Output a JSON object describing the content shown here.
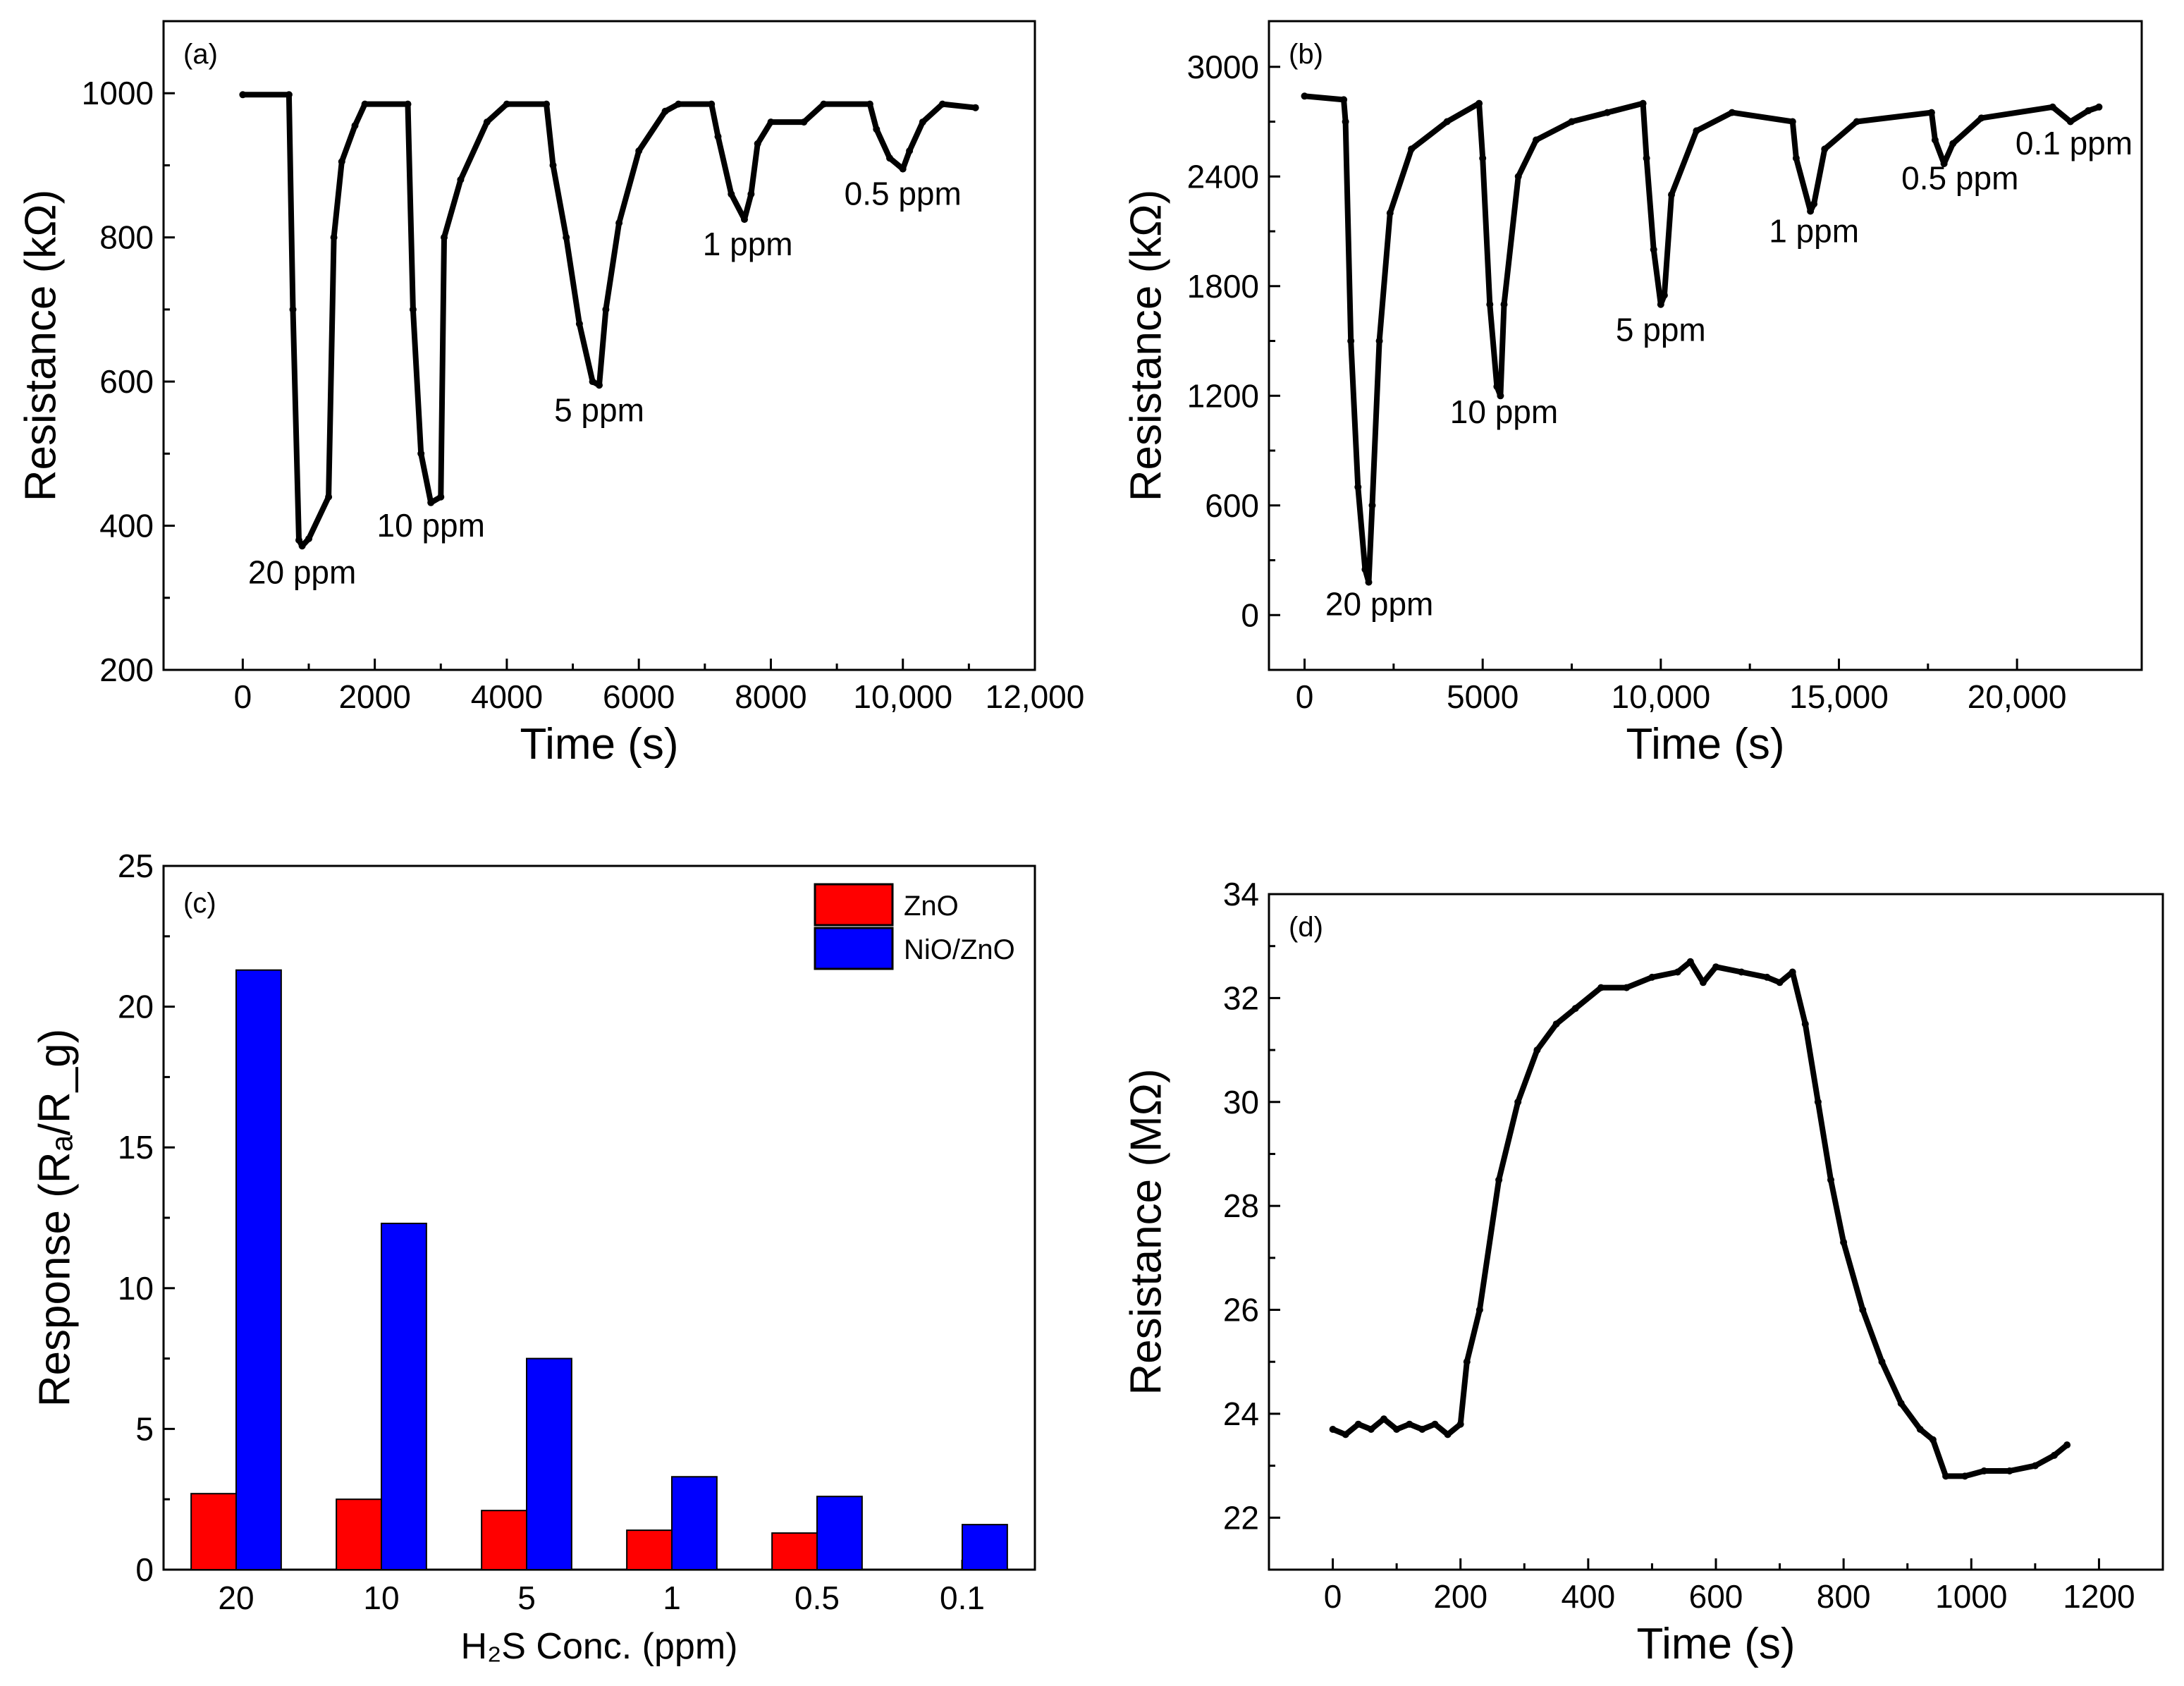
{
  "chart_data": [
    {
      "id": "a",
      "type": "line",
      "panel_label": "(a)",
      "xlabel": "Time (s)",
      "ylabel": "Resistance (kΩ)",
      "xlim": [
        -1200,
        12000
      ],
      "ylim": [
        200,
        1100
      ],
      "xticks": [
        0,
        2000,
        4000,
        6000,
        8000,
        10000,
        12000
      ],
      "xtick_labels": [
        "0",
        "2000",
        "4000",
        "6000",
        "8000",
        "10,000",
        "12,000"
      ],
      "yticks": [
        200,
        400,
        600,
        800,
        1000
      ],
      "ytick_labels": [
        "200",
        "400",
        "600",
        "800",
        "1000"
      ],
      "series": [
        {
          "name": "resistance",
          "points": [
            [
              0,
              998
            ],
            [
              700,
              998
            ],
            [
              760,
              700
            ],
            [
              850,
              380
            ],
            [
              900,
              372
            ],
            [
              1000,
              382
            ],
            [
              1300,
              440
            ],
            [
              1380,
              800
            ],
            [
              1500,
              905
            ],
            [
              1700,
              955
            ],
            [
              1850,
              985
            ],
            [
              2500,
              985
            ],
            [
              2580,
              700
            ],
            [
              2700,
              500
            ],
            [
              2850,
              432
            ],
            [
              3000,
              440
            ],
            [
              3050,
              800
            ],
            [
              3300,
              880
            ],
            [
              3700,
              960
            ],
            [
              4000,
              985
            ],
            [
              4600,
              985
            ],
            [
              4700,
              900
            ],
            [
              4900,
              800
            ],
            [
              5100,
              680
            ],
            [
              5300,
              600
            ],
            [
              5400,
              595
            ],
            [
              5500,
              700
            ],
            [
              5700,
              820
            ],
            [
              6000,
              920
            ],
            [
              6400,
              975
            ],
            [
              6600,
              985
            ],
            [
              7100,
              985
            ],
            [
              7200,
              940
            ],
            [
              7400,
              860
            ],
            [
              7600,
              825
            ],
            [
              7700,
              860
            ],
            [
              7800,
              930
            ],
            [
              8000,
              960
            ],
            [
              8500,
              960
            ],
            [
              8800,
              985
            ],
            [
              9500,
              985
            ],
            [
              9600,
              950
            ],
            [
              9800,
              910
            ],
            [
              10000,
              895
            ],
            [
              10100,
              920
            ],
            [
              10300,
              960
            ],
            [
              10600,
              985
            ],
            [
              11100,
              980
            ]
          ]
        }
      ],
      "annotations": [
        {
          "text": "20 ppm",
          "x": 900,
          "y": 320
        },
        {
          "text": "10 ppm",
          "x": 2850,
          "y": 385
        },
        {
          "text": "5 ppm",
          "x": 5400,
          "y": 545
        },
        {
          "text": "1 ppm",
          "x": 7650,
          "y": 775
        },
        {
          "text": "0.5 ppm",
          "x": 10000,
          "y": 845
        }
      ]
    },
    {
      "id": "b",
      "type": "line",
      "panel_label": "(b)",
      "xlabel": "Time (s)",
      "ylabel": "Resistance (kΩ)",
      "xlim": [
        -1000,
        23500
      ],
      "ylim": [
        -300,
        3250
      ],
      "xticks": [
        0,
        5000,
        10000,
        15000,
        20000
      ],
      "xtick_labels": [
        "0",
        "5000",
        "10,000",
        "15,000",
        "20,000"
      ],
      "yticks": [
        0,
        600,
        1200,
        1800,
        2400,
        3000
      ],
      "ytick_labels": [
        "0",
        "600",
        "1200",
        "1800",
        "2400",
        "3000"
      ],
      "series": [
        {
          "name": "resistance",
          "points": [
            [
              0,
              2840
            ],
            [
              1100,
              2820
            ],
            [
              1150,
              2700
            ],
            [
              1300,
              1500
            ],
            [
              1500,
              700
            ],
            [
              1700,
              250
            ],
            [
              1800,
              180
            ],
            [
              1900,
              600
            ],
            [
              2100,
              1500
            ],
            [
              2400,
              2200
            ],
            [
              3000,
              2550
            ],
            [
              4000,
              2700
            ],
            [
              4900,
              2800
            ],
            [
              5000,
              2500
            ],
            [
              5200,
              1700
            ],
            [
              5400,
              1250
            ],
            [
              5500,
              1200
            ],
            [
              5600,
              1700
            ],
            [
              6000,
              2400
            ],
            [
              6500,
              2600
            ],
            [
              7500,
              2700
            ],
            [
              8500,
              2750
            ],
            [
              9500,
              2800
            ],
            [
              9600,
              2500
            ],
            [
              9800,
              2000
            ],
            [
              10000,
              1700
            ],
            [
              10100,
              1750
            ],
            [
              10300,
              2300
            ],
            [
              11000,
              2650
            ],
            [
              12000,
              2750
            ],
            [
              13700,
              2700
            ],
            [
              13800,
              2500
            ],
            [
              14200,
              2210
            ],
            [
              14300,
              2250
            ],
            [
              14600,
              2550
            ],
            [
              15500,
              2700
            ],
            [
              17600,
              2750
            ],
            [
              17700,
              2600
            ],
            [
              17950,
              2470
            ],
            [
              18200,
              2580
            ],
            [
              19000,
              2720
            ],
            [
              21000,
              2780
            ],
            [
              21500,
              2700
            ],
            [
              22000,
              2760
            ],
            [
              22300,
              2780
            ]
          ]
        }
      ],
      "annotations": [
        {
          "text": "20 ppm",
          "x": 2100,
          "y": 0
        },
        {
          "text": "10 ppm",
          "x": 5600,
          "y": 1050
        },
        {
          "text": "5 ppm",
          "x": 10000,
          "y": 1500
        },
        {
          "text": "1 ppm",
          "x": 14300,
          "y": 2040
        },
        {
          "text": "0.5 ppm",
          "x": 18400,
          "y": 2330
        },
        {
          "text": "0.1 ppm",
          "x": 21600,
          "y": 2520
        }
      ]
    },
    {
      "id": "c",
      "type": "bar",
      "panel_label": "(c)",
      "xlabel": "H₂S Conc. (ppm)",
      "ylabel": "Response (Rₐ/R_g)",
      "ylim": [
        0,
        25
      ],
      "yticks": [
        0,
        5,
        10,
        15,
        20,
        25
      ],
      "ytick_labels": [
        "0",
        "5",
        "10",
        "15",
        "20",
        "25"
      ],
      "categories": [
        "20",
        "10",
        "5",
        "1",
        "0.5",
        "0.1"
      ],
      "series": [
        {
          "name": "ZnO",
          "color": "#ff0000",
          "values": [
            2.7,
            2.5,
            2.1,
            1.4,
            1.3,
            0
          ]
        },
        {
          "name": "NiO/ZnO",
          "color": "#0000ff",
          "values": [
            21.3,
            12.3,
            7.5,
            3.3,
            2.6,
            1.6
          ]
        }
      ],
      "legend": {
        "position": "top-right"
      }
    },
    {
      "id": "d",
      "type": "line",
      "panel_label": "(d)",
      "xlabel": "Time (s)",
      "ylabel": "Resistance (MΩ)",
      "xlim": [
        -100,
        1300
      ],
      "ylim": [
        21,
        34
      ],
      "xticks": [
        0,
        200,
        400,
        600,
        800,
        1000,
        1200
      ],
      "xtick_labels": [
        "0",
        "200",
        "400",
        "600",
        "800",
        "1000",
        "1200"
      ],
      "yticks": [
        22,
        24,
        26,
        28,
        30,
        32,
        34
      ],
      "ytick_labels": [
        "22",
        "24",
        "26",
        "28",
        "30",
        "32",
        "34"
      ],
      "series": [
        {
          "name": "resistance",
          "points": [
            [
              0,
              23.7
            ],
            [
              20,
              23.6
            ],
            [
              40,
              23.8
            ],
            [
              60,
              23.7
            ],
            [
              80,
              23.9
            ],
            [
              100,
              23.7
            ],
            [
              120,
              23.8
            ],
            [
              140,
              23.7
            ],
            [
              160,
              23.8
            ],
            [
              180,
              23.6
            ],
            [
              200,
              23.8
            ],
            [
              210,
              25.0
            ],
            [
              230,
              26.0
            ],
            [
              260,
              28.5
            ],
            [
              290,
              30.0
            ],
            [
              320,
              31.0
            ],
            [
              350,
              31.5
            ],
            [
              380,
              31.8
            ],
            [
              420,
              32.2
            ],
            [
              460,
              32.2
            ],
            [
              500,
              32.4
            ],
            [
              540,
              32.5
            ],
            [
              560,
              32.7
            ],
            [
              580,
              32.3
            ],
            [
              600,
              32.6
            ],
            [
              640,
              32.5
            ],
            [
              680,
              32.4
            ],
            [
              700,
              32.3
            ],
            [
              720,
              32.5
            ],
            [
              740,
              31.5
            ],
            [
              760,
              30.0
            ],
            [
              780,
              28.5
            ],
            [
              800,
              27.3
            ],
            [
              830,
              26.0
            ],
            [
              860,
              25.0
            ],
            [
              890,
              24.2
            ],
            [
              920,
              23.7
            ],
            [
              940,
              23.5
            ],
            [
              960,
              22.8
            ],
            [
              990,
              22.8
            ],
            [
              1020,
              22.9
            ],
            [
              1060,
              22.9
            ],
            [
              1100,
              23.0
            ],
            [
              1130,
              23.2
            ],
            [
              1150,
              23.4
            ]
          ]
        }
      ]
    }
  ]
}
